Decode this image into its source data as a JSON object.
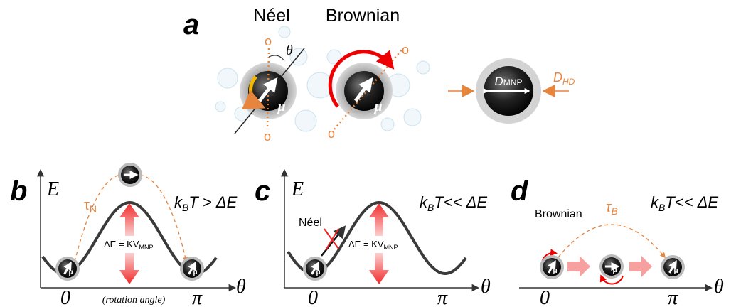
{
  "panel_a": {
    "label": "a",
    "neel": "Néel",
    "brownian": "Brownian",
    "angle": "θ",
    "axis_label": "o",
    "moment": "μ",
    "core_diameter": {
      "base": "D",
      "sub": "MNP"
    },
    "hydro_diameter": {
      "base": "D",
      "sub": "HD"
    }
  },
  "panel_b": {
    "label": "b",
    "y_axis": "E",
    "x_axis": "θ",
    "time": {
      "base": "τ",
      "sub": "N"
    },
    "condition": {
      "base": "k",
      "sub": "B",
      "rest": "T > ΔE"
    },
    "barrier": {
      "base": "ΔE = KV",
      "sub": "MNP"
    },
    "x_start": "0",
    "x_end": "π",
    "x_note": "(rotation angle)"
  },
  "panel_c": {
    "label": "c",
    "y_axis": "E",
    "x_axis": "θ",
    "mechanism": "Néel",
    "condition": {
      "base": "k",
      "sub": "B",
      "rest": "T<< ΔE"
    },
    "barrier": {
      "base": "ΔE = KV",
      "sub": "MNP"
    },
    "x_start": "0",
    "x_end": "π"
  },
  "panel_d": {
    "label": "d",
    "x_axis": "θ",
    "mechanism": "Brownian",
    "time": {
      "base": "τ",
      "sub": "B"
    },
    "condition": {
      "base": "k",
      "sub": "B",
      "rest": "T<< ΔE"
    },
    "x_start": "0",
    "x_end": "π"
  }
}
